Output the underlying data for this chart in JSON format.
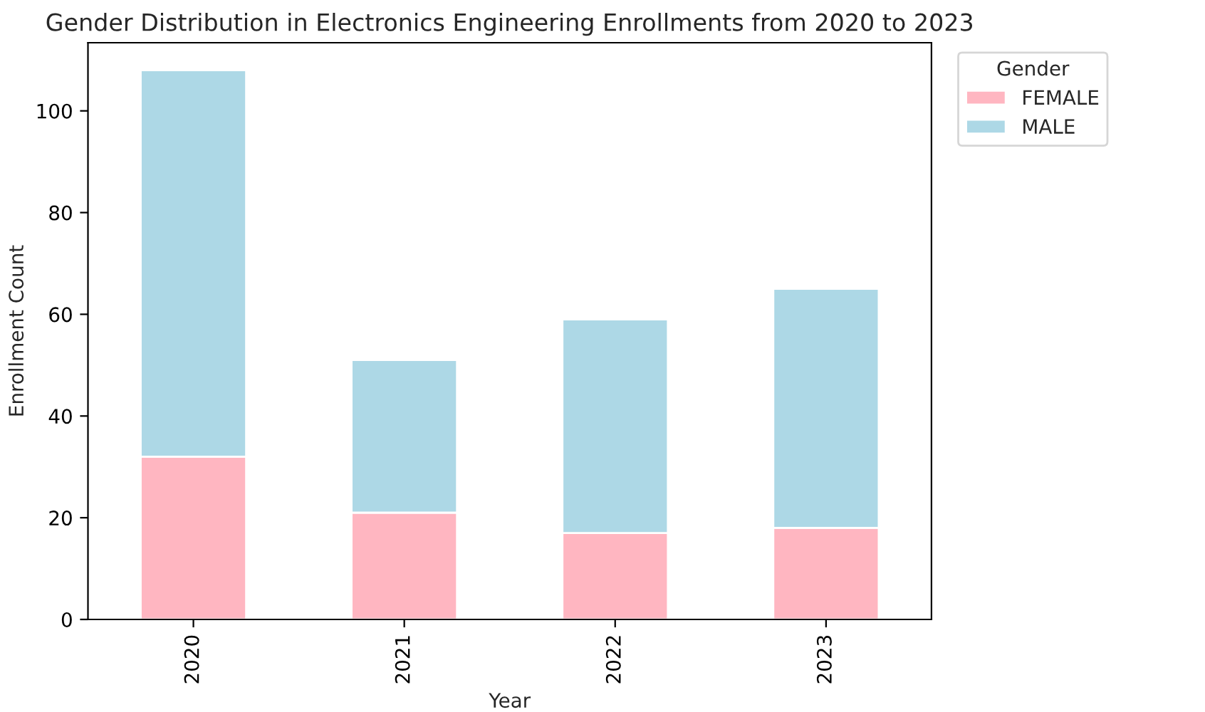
{
  "chart_data": {
    "type": "bar",
    "title": "Gender Distribution in Electronics Engineering Enrollments from 2020 to 2023",
    "xlabel": "Year",
    "ylabel": "Enrollment Count",
    "legend_title": "Gender",
    "categories": [
      "2020",
      "2021",
      "2022",
      "2023"
    ],
    "series": [
      {
        "name": "FEMALE",
        "color": "#ffb6c1",
        "values": [
          32,
          21,
          17,
          18
        ]
      },
      {
        "name": "MALE",
        "color": "#add8e6",
        "values": [
          76,
          30,
          42,
          47
        ]
      }
    ],
    "stacked": true,
    "ylim": [
      0,
      113.4
    ],
    "yticks": [
      0,
      20,
      40,
      60,
      80,
      100
    ],
    "grid": false,
    "legend": "top right"
  }
}
